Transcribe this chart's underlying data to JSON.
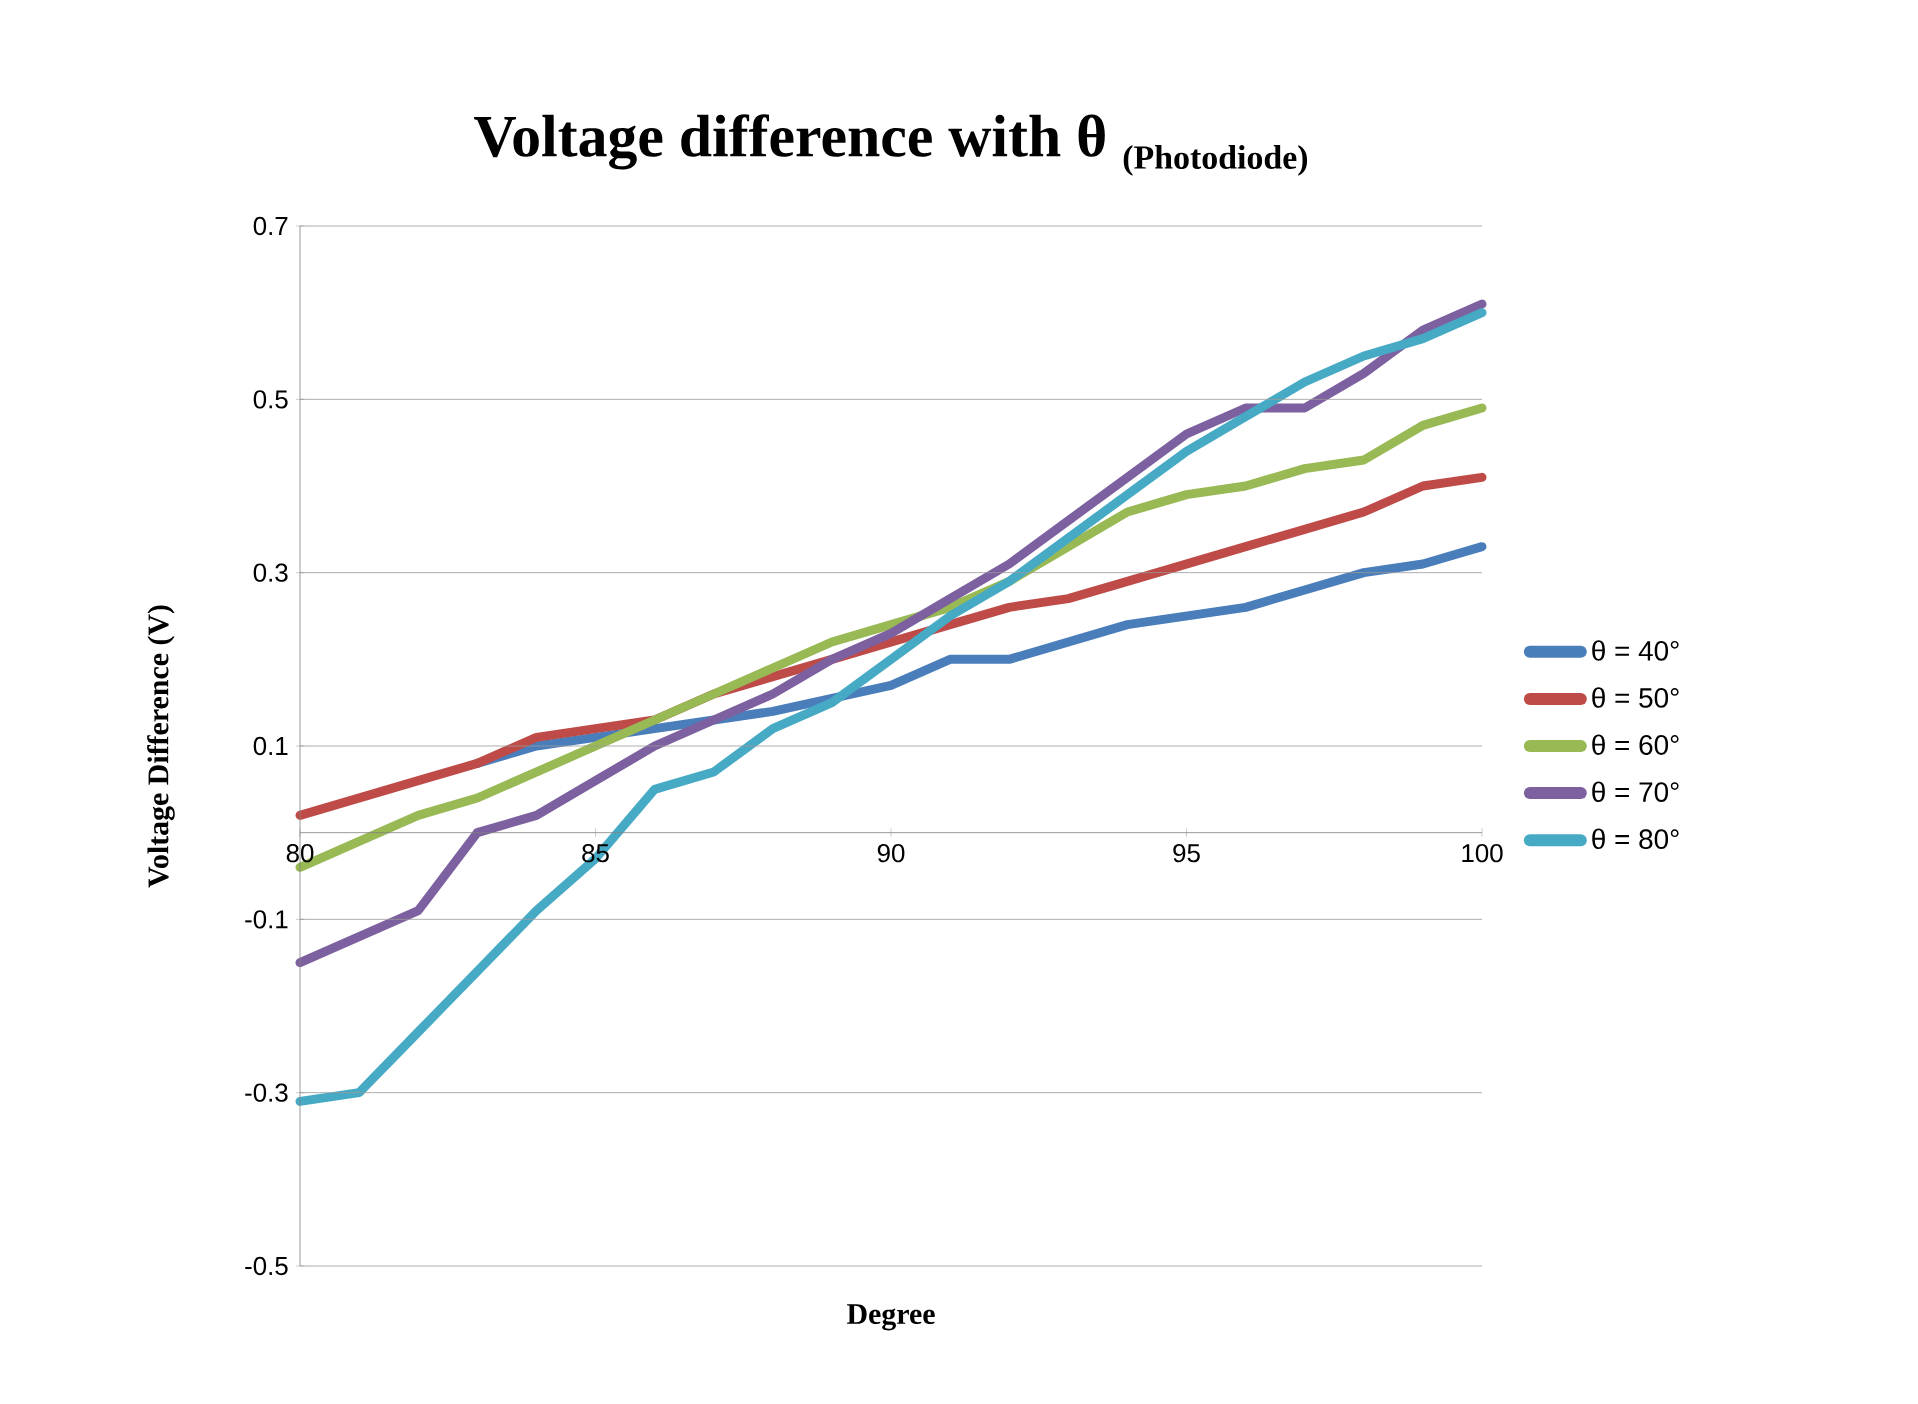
{
  "chart_data": {
    "type": "line",
    "title": "Voltage difference with θ",
    "subtitle": "(Photodiode)",
    "xlabel": "Degree",
    "ylabel": "Voltage Difference (V)",
    "x": [
      80,
      81,
      82,
      83,
      84,
      85,
      86,
      87,
      88,
      89,
      90,
      91,
      92,
      93,
      94,
      95,
      96,
      97,
      98,
      99,
      100
    ],
    "series": [
      {
        "name": "θ = 40°",
        "color": "#4a7ebb",
        "values": [
          null,
          null,
          null,
          0.08,
          0.1,
          0.11,
          0.12,
          0.13,
          0.14,
          0.155,
          0.17,
          0.2,
          0.2,
          0.22,
          0.24,
          0.25,
          0.26,
          0.28,
          0.3,
          0.31,
          0.33
        ]
      },
      {
        "name": "θ = 50°",
        "color": "#be4b48",
        "values": [
          0.02,
          0.04,
          0.06,
          0.08,
          0.11,
          0.12,
          0.13,
          0.16,
          0.18,
          0.2,
          0.22,
          0.24,
          0.26,
          0.27,
          0.29,
          0.31,
          0.33,
          0.35,
          0.37,
          0.4,
          0.41
        ]
      },
      {
        "name": "θ = 60°",
        "color": "#98b954",
        "values": [
          -0.04,
          -0.01,
          0.02,
          0.04,
          0.07,
          0.1,
          0.13,
          0.16,
          0.19,
          0.22,
          0.24,
          0.26,
          0.29,
          0.33,
          0.37,
          0.39,
          0.4,
          0.42,
          0.43,
          0.47,
          0.49
        ]
      },
      {
        "name": "θ = 70°",
        "color": "#7d60a0",
        "values": [
          -0.15,
          -0.12,
          -0.09,
          0.0,
          0.02,
          0.06,
          0.1,
          0.13,
          0.16,
          0.2,
          0.23,
          0.27,
          0.31,
          0.36,
          0.41,
          0.46,
          0.49,
          0.49,
          0.53,
          0.58,
          0.61
        ]
      },
      {
        "name": "θ = 80°",
        "color": "#46aac5",
        "values": [
          -0.31,
          -0.3,
          -0.23,
          -0.16,
          -0.09,
          -0.03,
          0.05,
          0.07,
          0.12,
          0.15,
          0.2,
          0.25,
          0.29,
          0.34,
          0.39,
          0.44,
          0.48,
          0.52,
          0.55,
          0.57,
          0.6
        ]
      }
    ],
    "xlim": [
      80,
      100
    ],
    "xticks": [
      80,
      85,
      90,
      95,
      100
    ],
    "ylim": [
      -0.5,
      0.7
    ],
    "yticks": [
      -0.5,
      -0.3,
      -0.1,
      0.1,
      0.3,
      0.5,
      0.7
    ],
    "grid": "y",
    "legend": "right",
    "marker": "none",
    "line_style": "solid"
  }
}
